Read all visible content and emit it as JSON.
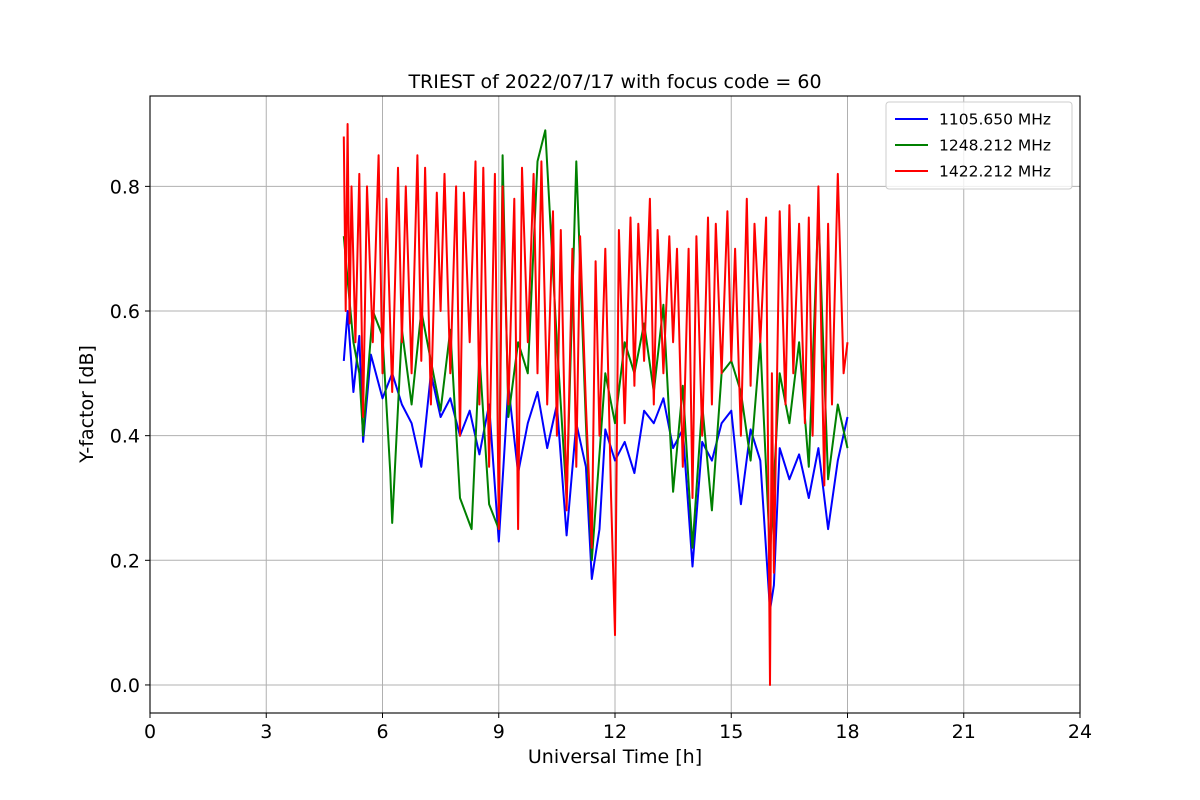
{
  "chart_data": {
    "type": "line",
    "title": "TRIEST of 2022/07/17 with focus code = 60",
    "xlabel": "Universal Time [h]",
    "ylabel": "Y-factor [dB]",
    "xlim": [
      0,
      24
    ],
    "ylim": [
      -0.045,
      0.945
    ],
    "xticks": [
      0,
      3,
      6,
      9,
      12,
      15,
      18,
      21,
      24
    ],
    "yticks": [
      0.0,
      0.2,
      0.4,
      0.6,
      0.8
    ],
    "xtick_labels": [
      "0",
      "3",
      "6",
      "9",
      "12",
      "15",
      "18",
      "21",
      "24"
    ],
    "ytick_labels": [
      "0.0",
      "0.2",
      "0.4",
      "0.6",
      "0.8"
    ],
    "grid": true,
    "legend_position": "top-right",
    "series": [
      {
        "name": "1105.650 MHz",
        "color": "#0000ff",
        "x": [
          5.0,
          5.1,
          5.25,
          5.4,
          5.5,
          5.7,
          6.0,
          6.25,
          6.5,
          6.75,
          7.0,
          7.25,
          7.5,
          7.75,
          8.0,
          8.25,
          8.5,
          8.75,
          9.0,
          9.25,
          9.5,
          9.75,
          10.0,
          10.25,
          10.5,
          10.75,
          11.0,
          11.25,
          11.4,
          11.6,
          11.75,
          12.0,
          12.25,
          12.5,
          12.75,
          13.0,
          13.25,
          13.5,
          13.75,
          14.0,
          14.25,
          14.5,
          14.75,
          15.0,
          15.25,
          15.5,
          15.75,
          16.0,
          16.1,
          16.25,
          16.5,
          16.75,
          17.0,
          17.25,
          17.5,
          17.75,
          18.0
        ],
        "y": [
          0.52,
          0.6,
          0.47,
          0.56,
          0.39,
          0.53,
          0.46,
          0.5,
          0.45,
          0.42,
          0.35,
          0.5,
          0.43,
          0.46,
          0.4,
          0.44,
          0.37,
          0.45,
          0.23,
          0.48,
          0.34,
          0.42,
          0.47,
          0.38,
          0.45,
          0.24,
          0.42,
          0.35,
          0.17,
          0.25,
          0.41,
          0.36,
          0.39,
          0.34,
          0.44,
          0.42,
          0.46,
          0.38,
          0.41,
          0.19,
          0.39,
          0.36,
          0.42,
          0.44,
          0.29,
          0.41,
          0.36,
          0.12,
          0.16,
          0.38,
          0.33,
          0.37,
          0.3,
          0.38,
          0.25,
          0.36,
          0.43
        ]
      },
      {
        "name": "1248.212 MHz",
        "color": "#008000",
        "x": [
          5.0,
          5.1,
          5.25,
          5.4,
          5.5,
          5.75,
          6.0,
          6.2,
          6.25,
          6.5,
          6.75,
          7.0,
          7.25,
          7.5,
          7.75,
          8.0,
          8.3,
          8.5,
          8.75,
          9.0,
          9.1,
          9.25,
          9.5,
          9.75,
          10.0,
          10.2,
          10.5,
          10.75,
          11.0,
          11.25,
          11.4,
          11.75,
          12.0,
          12.25,
          12.5,
          12.75,
          13.0,
          13.25,
          13.5,
          13.75,
          14.0,
          14.25,
          14.5,
          14.75,
          15.0,
          15.25,
          15.5,
          15.75,
          16.0,
          16.25,
          16.5,
          16.75,
          17.0,
          17.25,
          17.5,
          17.75,
          18.0
        ],
        "y": [
          0.72,
          0.65,
          0.55,
          0.5,
          0.4,
          0.6,
          0.56,
          0.34,
          0.26,
          0.57,
          0.45,
          0.6,
          0.52,
          0.44,
          0.57,
          0.3,
          0.25,
          0.53,
          0.29,
          0.25,
          0.85,
          0.43,
          0.55,
          0.5,
          0.84,
          0.89,
          0.55,
          0.3,
          0.84,
          0.42,
          0.2,
          0.5,
          0.42,
          0.55,
          0.5,
          0.58,
          0.47,
          0.61,
          0.31,
          0.48,
          0.22,
          0.45,
          0.28,
          0.5,
          0.52,
          0.47,
          0.36,
          0.55,
          0.21,
          0.5,
          0.42,
          0.55,
          0.35,
          0.76,
          0.33,
          0.45,
          0.38
        ]
      },
      {
        "name": "1422.212 MHz",
        "color": "#ff0000",
        "x": [
          5.0,
          5.05,
          5.1,
          5.15,
          5.2,
          5.3,
          5.4,
          5.5,
          5.6,
          5.75,
          5.9,
          6.0,
          6.1,
          6.25,
          6.4,
          6.5,
          6.6,
          6.75,
          6.9,
          7.0,
          7.1,
          7.25,
          7.4,
          7.5,
          7.6,
          7.75,
          7.9,
          8.0,
          8.1,
          8.25,
          8.4,
          8.5,
          8.6,
          8.75,
          8.9,
          9.0,
          9.1,
          9.25,
          9.4,
          9.5,
          9.6,
          9.75,
          9.9,
          10.0,
          10.1,
          10.25,
          10.4,
          10.5,
          10.6,
          10.75,
          10.9,
          11.0,
          11.1,
          11.25,
          11.4,
          11.5,
          11.6,
          11.75,
          11.9,
          12.0,
          12.1,
          12.25,
          12.4,
          12.5,
          12.6,
          12.75,
          12.9,
          13.0,
          13.1,
          13.25,
          13.4,
          13.5,
          13.6,
          13.75,
          13.9,
          14.0,
          14.1,
          14.25,
          14.4,
          14.5,
          14.6,
          14.75,
          14.9,
          15.0,
          15.1,
          15.25,
          15.4,
          15.5,
          15.6,
          15.75,
          15.9,
          16.0,
          16.05,
          16.1,
          16.25,
          16.4,
          16.5,
          16.6,
          16.75,
          16.9,
          17.0,
          17.1,
          17.25,
          17.4,
          17.5,
          17.6,
          17.75,
          17.9,
          18.0
        ],
        "y": [
          0.88,
          0.6,
          0.9,
          0.58,
          0.8,
          0.55,
          0.82,
          0.43,
          0.8,
          0.55,
          0.85,
          0.5,
          0.78,
          0.47,
          0.83,
          0.55,
          0.8,
          0.5,
          0.85,
          0.52,
          0.83,
          0.45,
          0.79,
          0.6,
          0.82,
          0.5,
          0.8,
          0.4,
          0.79,
          0.55,
          0.84,
          0.45,
          0.83,
          0.35,
          0.82,
          0.25,
          0.8,
          0.45,
          0.78,
          0.25,
          0.83,
          0.55,
          0.82,
          0.5,
          0.84,
          0.45,
          0.76,
          0.4,
          0.73,
          0.28,
          0.7,
          0.35,
          0.72,
          0.45,
          0.22,
          0.68,
          0.4,
          0.7,
          0.3,
          0.08,
          0.73,
          0.42,
          0.75,
          0.48,
          0.74,
          0.52,
          0.78,
          0.45,
          0.73,
          0.5,
          0.72,
          0.55,
          0.7,
          0.35,
          0.7,
          0.3,
          0.72,
          0.4,
          0.75,
          0.45,
          0.74,
          0.5,
          0.76,
          0.52,
          0.7,
          0.4,
          0.78,
          0.48,
          0.74,
          0.55,
          0.75,
          0.0,
          0.5,
          0.18,
          0.76,
          0.45,
          0.77,
          0.5,
          0.74,
          0.42,
          0.75,
          0.4,
          0.8,
          0.32,
          0.74,
          0.45,
          0.82,
          0.5,
          0.55
        ]
      }
    ]
  }
}
